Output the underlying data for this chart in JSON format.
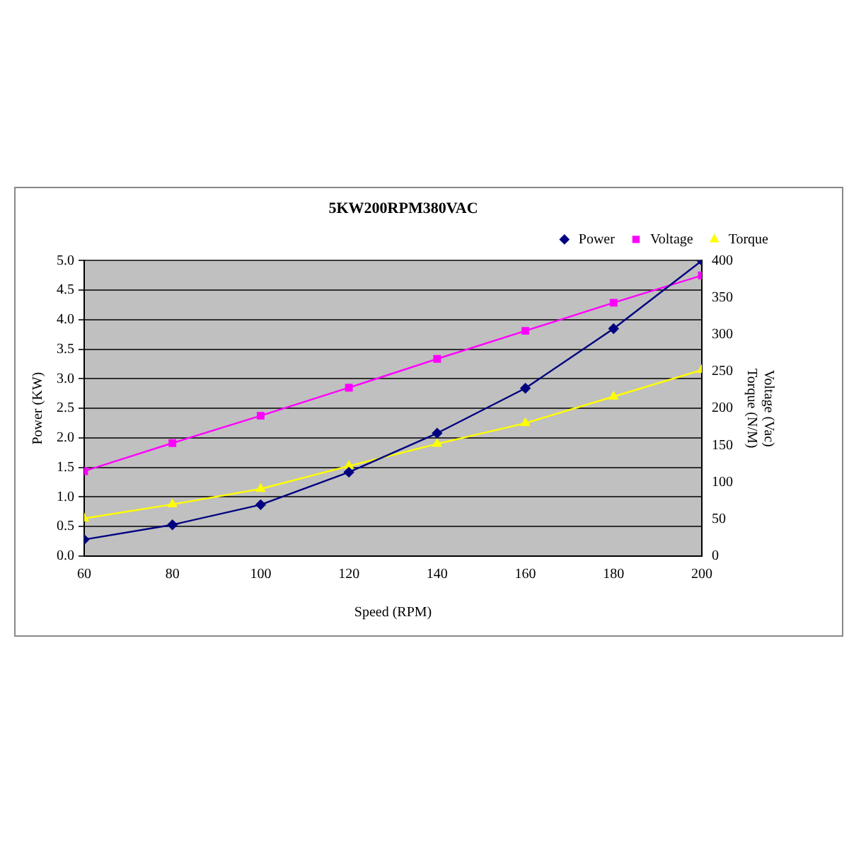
{
  "chart_data": {
    "type": "line",
    "title": "5KW200RPM380VAC",
    "xlabel": "Speed (RPM)",
    "ylabel": "Power (KW)",
    "y2label": [
      "Voltage (Vac)",
      "Torque (N/M)"
    ],
    "x": [
      60,
      80,
      100,
      120,
      140,
      160,
      180,
      200
    ],
    "xlim": [
      60,
      200
    ],
    "xticks": [
      60,
      80,
      100,
      120,
      140,
      160,
      180,
      200
    ],
    "ylim": [
      0,
      5
    ],
    "yticks": [
      {
        "value": 0,
        "label": "0.0"
      },
      {
        "value": 0.5,
        "label": "0.5"
      },
      {
        "value": 1,
        "label": "1.0"
      },
      {
        "value": 1.5,
        "label": "1.5"
      },
      {
        "value": 2,
        "label": "2.0"
      },
      {
        "value": 2.5,
        "label": "2.5"
      },
      {
        "value": 3,
        "label": "3.0"
      },
      {
        "value": 3.5,
        "label": "3.5"
      },
      {
        "value": 4,
        "label": "4.0"
      },
      {
        "value": 4.5,
        "label": "4.5"
      },
      {
        "value": 5,
        "label": "5.0"
      }
    ],
    "y2lim": [
      0,
      400
    ],
    "y2ticks": [
      0,
      50,
      100,
      150,
      200,
      250,
      300,
      350,
      400
    ],
    "grid": "y",
    "legend": "top right",
    "line_style": "solid",
    "series": [
      {
        "name": "Power",
        "color": "#000080",
        "marker": "diamond",
        "values": [
          0.28,
          0.53,
          0.87,
          1.42,
          2.08,
          2.84,
          3.85,
          5.0
        ]
      },
      {
        "name": "Voltage",
        "color": "#ff00ff",
        "marker": "square",
        "axis": "y2",
        "values": [
          115,
          153,
          190,
          228,
          267,
          305,
          343,
          380
        ]
      },
      {
        "name": "Torque",
        "color": "#ffff00",
        "marker": "triangle",
        "axis": "y2",
        "values": [
          51,
          70,
          91,
          122,
          152,
          180,
          216,
          252
        ]
      }
    ]
  }
}
